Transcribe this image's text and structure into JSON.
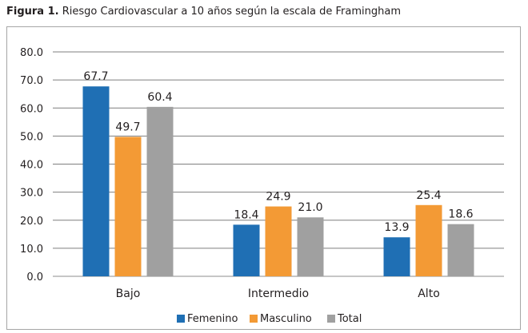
{
  "caption": {
    "label": "Figura 1.",
    "text": "Riesgo Cardiovascular a 10 años según la escala de Framingham"
  },
  "chart_data": {
    "type": "bar",
    "title": "",
    "xlabel": "",
    "ylabel": "",
    "categories": [
      "Bajo",
      "Intermedio",
      "Alto"
    ],
    "series": [
      {
        "name": "Femenino",
        "color": "#1f6fb4",
        "values": [
          67.7,
          18.4,
          13.9
        ]
      },
      {
        "name": "Masculino",
        "color": "#f39a35",
        "values": [
          49.7,
          24.9,
          25.4
        ]
      },
      {
        "name": "Total",
        "color": "#a0a0a0",
        "values": [
          60.4,
          21.0,
          18.6
        ]
      }
    ],
    "ylim": [
      0,
      80
    ],
    "yticks": [
      "0.0",
      "10.0",
      "20.0",
      "30.0",
      "40.0",
      "50.0",
      "60.0",
      "70.0",
      "80.0"
    ],
    "grid": true,
    "legend": "bottom"
  }
}
